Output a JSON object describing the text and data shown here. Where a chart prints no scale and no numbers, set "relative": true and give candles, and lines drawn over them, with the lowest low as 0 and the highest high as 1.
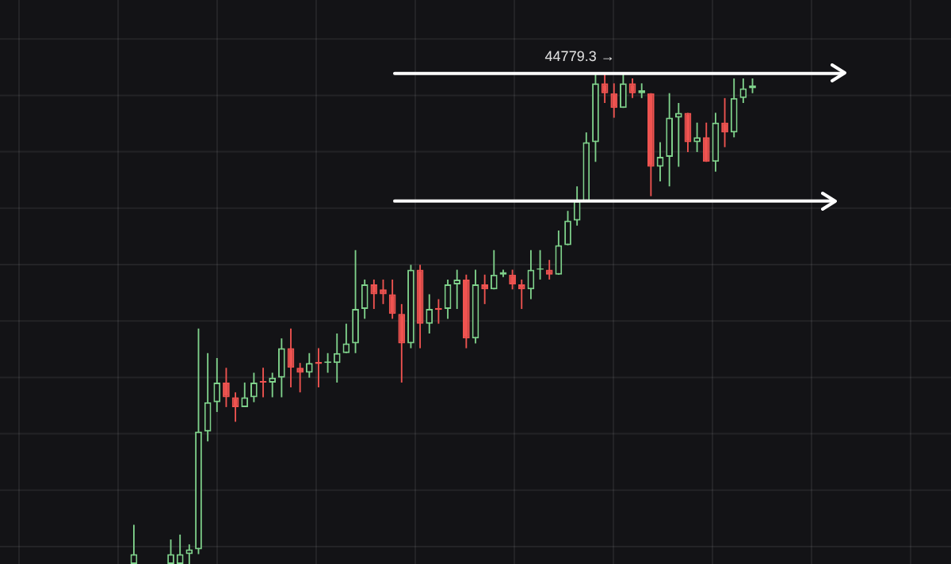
{
  "chart_data": {
    "type": "candlestick",
    "relative": true,
    "grid": true,
    "categories": [
      null,
      null,
      null,
      null,
      null,
      null,
      null,
      null,
      null,
      null,
      null,
      null,
      null,
      null,
      null,
      null,
      null,
      null,
      null,
      null,
      null,
      null,
      null,
      null,
      null,
      null,
      null,
      null,
      null,
      null,
      null,
      null,
      null,
      null,
      null,
      null,
      null,
      null,
      null,
      null,
      null,
      null,
      null,
      null,
      null,
      null,
      null,
      null,
      null,
      null,
      null,
      null,
      null,
      null,
      null,
      null,
      null,
      null,
      null,
      null,
      null,
      null,
      null,
      null,
      null,
      null,
      null,
      null,
      null,
      null,
      null,
      null,
      null,
      null,
      null,
      null,
      null,
      null,
      null,
      null,
      null,
      null,
      null,
      null,
      null,
      null,
      null,
      null,
      null,
      null,
      null,
      null,
      null,
      null,
      null,
      null,
      null,
      null,
      null,
      null,
      null,
      null,
      null
    ],
    "ohlc": [
      null,
      null,
      null,
      null,
      null,
      null,
      null,
      null,
      null,
      null,
      null,
      null,
      null,
      null,
      [
        0,
        0.08,
        0,
        0.02
      ],
      null,
      null,
      null,
      [
        0,
        0.05,
        0,
        0.02
      ],
      [
        0,
        0.06,
        0,
        0.02
      ],
      [
        0.02,
        0.04,
        0,
        0.03
      ],
      [
        0.03,
        0.48,
        0.02,
        0.27
      ],
      [
        0.27,
        0.43,
        0.25,
        0.33
      ],
      [
        0.33,
        0.42,
        0.31,
        0.37
      ],
      [
        0.37,
        0.4,
        0.32,
        0.34
      ],
      [
        0.34,
        0.35,
        0.29,
        0.32
      ],
      [
        0.32,
        0.37,
        0.32,
        0.34
      ],
      [
        0.34,
        0.39,
        0.33,
        0.37
      ],
      [
        0.373,
        0.4,
        0.34,
        0.37
      ],
      [
        0.37,
        0.39,
        0.34,
        0.38
      ],
      [
        0.38,
        0.46,
        0.34,
        0.44
      ],
      [
        0.44,
        0.48,
        0.36,
        0.4
      ],
      [
        0.4,
        0.41,
        0.35,
        0.39
      ],
      [
        0.39,
        0.43,
        0.38,
        0.41
      ],
      [
        0.412,
        0.44,
        0.36,
        0.408
      ],
      [
        0.41,
        0.43,
        0.39,
        0.413
      ],
      [
        0.41,
        0.47,
        0.37,
        0.43
      ],
      [
        0.43,
        0.49,
        0.43,
        0.45
      ],
      [
        0.45,
        0.64,
        0.43,
        0.52
      ],
      [
        0.52,
        0.58,
        0.5,
        0.57
      ],
      [
        0.57,
        0.58,
        0.52,
        0.55
      ],
      [
        0.56,
        0.58,
        0.53,
        0.55
      ],
      [
        0.55,
        0.58,
        0.5,
        0.51
      ],
      [
        0.51,
        0.53,
        0.37,
        0.45
      ],
      [
        0.45,
        0.61,
        0.44,
        0.6
      ],
      [
        0.6,
        0.61,
        0.44,
        0.49
      ],
      [
        0.49,
        0.55,
        0.47,
        0.52
      ],
      [
        0.522,
        0.54,
        0.49,
        0.518
      ],
      [
        0.52,
        0.58,
        0.5,
        0.57
      ],
      [
        0.57,
        0.6,
        0.52,
        0.58
      ],
      [
        0.58,
        0.59,
        0.44,
        0.46
      ],
      [
        0.46,
        0.6,
        0.45,
        0.57
      ],
      [
        0.57,
        0.59,
        0.53,
        0.56
      ],
      [
        0.56,
        0.64,
        0.56,
        0.59
      ],
      [
        0.59,
        0.6,
        0.585,
        0.595
      ],
      [
        0.59,
        0.6,
        0.56,
        0.57
      ],
      [
        0.57,
        0.58,
        0.52,
        0.56
      ],
      [
        0.56,
        0.64,
        0.54,
        0.6
      ],
      [
        0.6,
        0.64,
        0.58,
        0.603
      ],
      [
        0.6,
        0.62,
        0.58,
        0.59
      ],
      [
        0.59,
        0.68,
        0.59,
        0.65
      ],
      [
        0.65,
        0.72,
        0.65,
        0.7
      ],
      [
        0.7,
        0.77,
        0.69,
        0.74
      ],
      [
        0.74,
        0.88,
        0.74,
        0.86
      ],
      [
        0.86,
        1,
        0.82,
        0.98
      ],
      [
        0.98,
        1,
        0.94,
        0.96
      ],
      [
        0.96,
        0.98,
        0.91,
        0.93
      ],
      [
        0.93,
        1,
        0.93,
        0.98
      ],
      [
        0.98,
        0.99,
        0.95,
        0.96
      ],
      [
        0.96,
        0.98,
        0.95,
        0.966
      ],
      [
        0.96,
        0.96,
        0.75,
        0.81
      ],
      [
        0.81,
        0.86,
        0.78,
        0.83
      ],
      [
        0.83,
        0.96,
        0.77,
        0.91
      ],
      [
        0.91,
        0.94,
        0.81,
        0.92
      ],
      [
        0.92,
        0.92,
        0.84,
        0.86
      ],
      [
        0.86,
        0.9,
        0.84,
        0.87
      ],
      [
        0.87,
        0.9,
        0.82,
        0.82
      ],
      [
        0.82,
        0.92,
        0.8,
        0.9
      ],
      [
        0.9,
        0.95,
        0.85,
        0.88
      ],
      [
        0.88,
        0.99,
        0.87,
        0.95
      ],
      [
        0.95,
        0.99,
        0.94,
        0.97
      ],
      [
        0.97,
        0.99,
        0.96,
        0.976
      ],
      null,
      null,
      null,
      null,
      null,
      null,
      null,
      null,
      null,
      null,
      null,
      null,
      null,
      null,
      null,
      null,
      null,
      null,
      null,
      null,
      null
    ],
    "colors": [
      null,
      null,
      null,
      null,
      null,
      null,
      null,
      null,
      null,
      null,
      null,
      null,
      null,
      null,
      "#7fd18b",
      null,
      null,
      null,
      "#7fd18b",
      "#7fd18b",
      "#7fd18b",
      "#7fd18b",
      "#7fd18b",
      "#7fd18b",
      "#ef5350",
      "#ef5350",
      "#7fd18b",
      "#7fd18b",
      "#ef5350",
      "#7fd18b",
      "#7fd18b",
      "#ef5350",
      "#ef5350",
      "#7fd18b",
      "#ef5350",
      "#7fd18b",
      "#7fd18b",
      "#7fd18b",
      "#7fd18b",
      "#7fd18b",
      "#ef5350",
      "#ef5350",
      "#ef5350",
      "#ef5350",
      "#7fd18b",
      "#ef5350",
      "#7fd18b",
      "#ef5350",
      "#7fd18b",
      "#7fd18b",
      "#ef5350",
      "#7fd18b",
      "#ef5350",
      "#7fd18b",
      "#7fd18b",
      "#ef5350",
      "#ef5350",
      "#7fd18b",
      "#7fd18b",
      "#ef5350",
      "#7fd18b",
      "#7fd18b",
      "#7fd18b",
      "#7fd18b",
      "#7fd18b",
      "#ef5350",
      "#ef5350",
      "#7fd18b",
      "#ef5350",
      "#7fd18b",
      "#ef5350",
      "#7fd18b",
      "#7fd18b",
      "#7fd18b",
      "#ef5350",
      "#7fd18b",
      "#ef5350",
      "#7fd18b",
      "#ef5350",
      "#7fd18b",
      "#7fd18b",
      "#7fd18b",
      null,
      null,
      null,
      null,
      null,
      null,
      null,
      null,
      null,
      null,
      null,
      null,
      null,
      null,
      null,
      null,
      null,
      null,
      null,
      null,
      null
    ],
    "ref_lines": [
      {
        "axis": "y",
        "value": 1,
        "color": "#ffffff"
      },
      {
        "axis": "y",
        "value": 0.74,
        "color": "#ffffff"
      }
    ],
    "annotations": [
      {
        "text": "44779.3 →",
        "y": 1
      }
    ]
  }
}
